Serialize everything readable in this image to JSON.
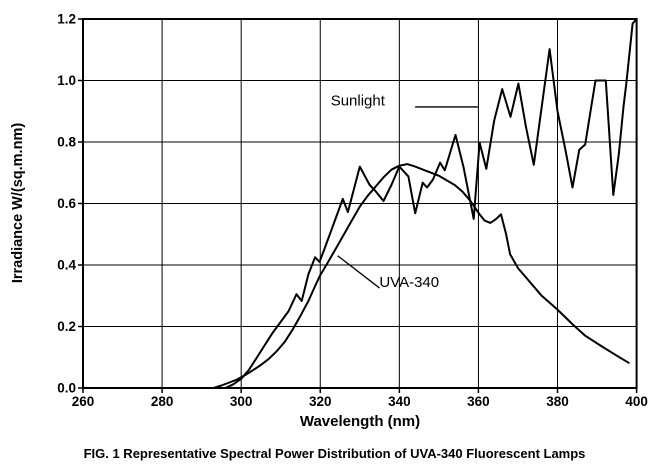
{
  "figure": {
    "caption": "FIG. 1 Representative Spectral Power Distribution of UVA-340 Fluorescent Lamps"
  },
  "chart_data": {
    "type": "line",
    "title": "",
    "xlabel": "Wavelength (nm)",
    "ylabel": "Irradiance W/(sq.m.nm)",
    "xlim": [
      260,
      400
    ],
    "ylim": [
      0,
      1.2
    ],
    "x_ticks": [
      "260",
      "280",
      "300",
      "320",
      "340",
      "360",
      "380",
      "400"
    ],
    "y_ticks": [
      "0.0",
      "0.2",
      "0.4",
      "0.6",
      "0.8",
      "1.0",
      "1.2"
    ],
    "grid": true,
    "legend_position": "none",
    "background": "#ffffff",
    "line_color": "#000000",
    "series": [
      {
        "name": "Sunlight",
        "points": [
          [
            296,
            0
          ],
          [
            298,
            0.012
          ],
          [
            300,
            0.03
          ],
          [
            302,
            0.06
          ],
          [
            304,
            0.1
          ],
          [
            306,
            0.14
          ],
          [
            308,
            0.18
          ],
          [
            310,
            0.215
          ],
          [
            312,
            0.25
          ],
          [
            314,
            0.305
          ],
          [
            315.3,
            0.283
          ],
          [
            317,
            0.37
          ],
          [
            318.7,
            0.425
          ],
          [
            319.8,
            0.41
          ],
          [
            321,
            0.45
          ],
          [
            323,
            0.52
          ],
          [
            325.7,
            0.615
          ],
          [
            327,
            0.572
          ],
          [
            330,
            0.72
          ],
          [
            332.5,
            0.66
          ],
          [
            334,
            0.64
          ],
          [
            336,
            0.608
          ],
          [
            338,
            0.66
          ],
          [
            340,
            0.72
          ],
          [
            342.3,
            0.688
          ],
          [
            344,
            0.568
          ],
          [
            345.9,
            0.668
          ],
          [
            347,
            0.652
          ],
          [
            348.5,
            0.678
          ],
          [
            350.3,
            0.733
          ],
          [
            351.5,
            0.708
          ],
          [
            354.2,
            0.823
          ],
          [
            356.2,
            0.72
          ],
          [
            358.8,
            0.55
          ],
          [
            360.3,
            0.798
          ],
          [
            362,
            0.713
          ],
          [
            364,
            0.87
          ],
          [
            366,
            0.972
          ],
          [
            368.1,
            0.882
          ],
          [
            370.1,
            0.99
          ],
          [
            372,
            0.85
          ],
          [
            374,
            0.726
          ],
          [
            378,
            1.102
          ],
          [
            380,
            0.9
          ],
          [
            382,
            0.775
          ],
          [
            383.8,
            0.652
          ],
          [
            385.5,
            0.775
          ],
          [
            387,
            0.792
          ],
          [
            388.6,
            0.92
          ],
          [
            389.6,
            1.0
          ],
          [
            392.2,
            1.0
          ],
          [
            394.1,
            0.628
          ],
          [
            395.5,
            0.76
          ],
          [
            396.7,
            0.918
          ],
          [
            397.4,
            0.99
          ],
          [
            399,
            1.185
          ],
          [
            400,
            1.2
          ]
        ]
      },
      {
        "name": "UVA-340",
        "points": [
          [
            293,
            0
          ],
          [
            295,
            0.008
          ],
          [
            297,
            0.018
          ],
          [
            299,
            0.028
          ],
          [
            301,
            0.042
          ],
          [
            303,
            0.058
          ],
          [
            305,
            0.075
          ],
          [
            307,
            0.095
          ],
          [
            309,
            0.12
          ],
          [
            311,
            0.15
          ],
          [
            313,
            0.19
          ],
          [
            315,
            0.235
          ],
          [
            317,
            0.283
          ],
          [
            319,
            0.34
          ],
          [
            320,
            0.367
          ],
          [
            322,
            0.41
          ],
          [
            324,
            0.455
          ],
          [
            326,
            0.5
          ],
          [
            328,
            0.545
          ],
          [
            330,
            0.59
          ],
          [
            332,
            0.625
          ],
          [
            334,
            0.655
          ],
          [
            336,
            0.685
          ],
          [
            338,
            0.71
          ],
          [
            340,
            0.723
          ],
          [
            342,
            0.728
          ],
          [
            344,
            0.72
          ],
          [
            346,
            0.71
          ],
          [
            348,
            0.7
          ],
          [
            350,
            0.69
          ],
          [
            352,
            0.675
          ],
          [
            354,
            0.66
          ],
          [
            356,
            0.638
          ],
          [
            358,
            0.608
          ],
          [
            360,
            0.57
          ],
          [
            361.5,
            0.545
          ],
          [
            363,
            0.537
          ],
          [
            364.5,
            0.55
          ],
          [
            365.7,
            0.565
          ],
          [
            367,
            0.5
          ],
          [
            368,
            0.435
          ],
          [
            370,
            0.39
          ],
          [
            373,
            0.345
          ],
          [
            376,
            0.3
          ],
          [
            380,
            0.255
          ],
          [
            384,
            0.205
          ],
          [
            387,
            0.17
          ],
          [
            391,
            0.137
          ],
          [
            395,
            0.105
          ],
          [
            398,
            0.082
          ]
        ]
      }
    ],
    "annotations": [
      {
        "text": "Sunlight",
        "x": 329.5,
        "y": 0.935,
        "callout_line": {
          "x1": 344,
          "y1": 0.914,
          "x2": 360,
          "y2": 0.914
        }
      },
      {
        "text": "UVA-340",
        "x": 342.5,
        "y": 0.345,
        "callout_line": {
          "x1": 324.4,
          "y1": 0.43,
          "x2": 335,
          "y2": 0.325
        }
      }
    ]
  }
}
